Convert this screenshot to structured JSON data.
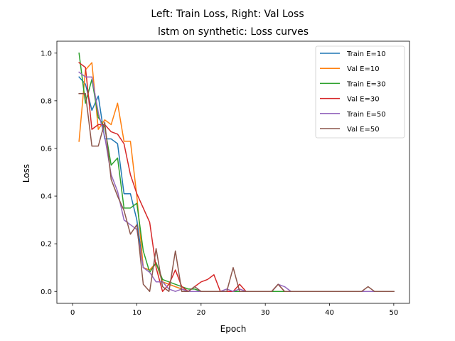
{
  "chart_data": {
    "type": "line",
    "title": "Left: Train Loss, Right: Val Loss",
    "subtitle": "lstm on synthetic: Loss curves",
    "xlabel": "Epoch",
    "ylabel": "Loss",
    "xlim": [
      -2.45,
      52.45
    ],
    "ylim": [
      -0.05,
      1.05
    ],
    "xticks": [
      0,
      10,
      20,
      30,
      40,
      50
    ],
    "yticks": [
      0.0,
      0.2,
      0.4,
      0.6,
      0.8,
      1.0
    ],
    "xtick_labels": [
      "0",
      "10",
      "20",
      "30",
      "40",
      "50"
    ],
    "ytick_labels": [
      "0.0",
      "0.2",
      "0.4",
      "0.6",
      "0.8",
      "1.0"
    ],
    "grid": false,
    "legend_position": "top-right",
    "x": [
      1,
      2,
      3,
      4,
      5,
      6,
      7,
      8,
      9,
      10,
      11,
      12,
      13,
      14,
      15,
      16,
      17,
      18,
      19,
      20,
      21,
      22,
      23,
      24,
      25,
      26,
      27,
      28,
      29,
      30,
      31,
      32,
      33,
      34,
      35,
      36,
      37,
      38,
      39,
      40,
      41,
      42,
      43,
      44,
      45,
      46,
      47,
      48,
      49,
      50
    ],
    "series": [
      {
        "name": "Train E=10",
        "color": "#1f77b4",
        "values": [
          0.9,
          0.87,
          0.76,
          0.82,
          0.64,
          0.64,
          0.62,
          0.41,
          0.41,
          0.3,
          0.1,
          0.09,
          0.12,
          0.04,
          0.03,
          0.02,
          0.01,
          0,
          0,
          0,
          0,
          0,
          0,
          0,
          0,
          0,
          0,
          0,
          0,
          0,
          0,
          0,
          0,
          0,
          0,
          0,
          0,
          0,
          0,
          0,
          0,
          0,
          0,
          0,
          0,
          0,
          0,
          0,
          0,
          0
        ]
      },
      {
        "name": "Val E=10",
        "color": "#ff7f0e",
        "values": [
          0.63,
          0.93,
          0.96,
          0.68,
          0.72,
          0.7,
          0.79,
          0.63,
          0.63,
          0.4,
          0.1,
          0.09,
          0.12,
          0.04,
          0.03,
          0.02,
          0.01,
          0,
          0,
          0,
          0,
          0,
          0,
          0,
          0,
          0,
          0,
          0,
          0,
          0,
          0,
          0,
          0,
          0,
          0,
          0,
          0,
          0,
          0,
          0,
          0,
          0,
          0,
          0,
          0,
          0,
          0,
          0,
          0,
          0
        ]
      },
      {
        "name": "Train E=30",
        "color": "#2ca02c",
        "values": [
          1.0,
          0.79,
          0.89,
          0.73,
          0.69,
          0.53,
          0.56,
          0.35,
          0.35,
          0.37,
          0.17,
          0.08,
          0.12,
          0.05,
          0.04,
          0.03,
          0.02,
          0.01,
          0.01,
          0,
          0,
          0,
          0,
          0,
          0,
          0,
          0,
          0,
          0,
          0,
          0,
          0,
          0,
          0,
          0,
          0,
          0,
          0,
          0,
          0,
          0,
          0,
          0,
          0,
          0,
          0,
          0,
          0,
          0,
          0
        ]
      },
      {
        "name": "Val E=30",
        "color": "#d62728",
        "values": [
          0.96,
          0.94,
          0.68,
          0.7,
          0.7,
          0.67,
          0.66,
          0.62,
          0.49,
          0.41,
          0.35,
          0.29,
          0.1,
          0.0,
          0.03,
          0.09,
          0.02,
          0.0,
          0.02,
          0.04,
          0.05,
          0.07,
          0.0,
          0.0,
          0.0,
          0.03,
          0.0,
          0.0,
          0.0,
          0.0,
          0.0,
          0.03,
          0.0,
          0,
          0,
          0,
          0,
          0,
          0,
          0,
          0,
          0,
          0,
          0,
          0,
          0,
          0,
          0,
          0,
          0
        ]
      },
      {
        "name": "Train E=50",
        "color": "#9467bd",
        "values": [
          0.92,
          0.9,
          0.9,
          0.75,
          0.65,
          0.49,
          0.42,
          0.3,
          0.28,
          0.26,
          0.1,
          0.08,
          0.04,
          0.04,
          0.01,
          0.0,
          0.01,
          0.0,
          0.0,
          0.0,
          0.0,
          0.0,
          0.0,
          0.01,
          0.0,
          0.01,
          0.0,
          0.0,
          0.0,
          0.0,
          0.0,
          0.03,
          0.02,
          0.0,
          0,
          0,
          0,
          0,
          0,
          0,
          0,
          0,
          0,
          0,
          0,
          0,
          0,
          0,
          0,
          0
        ]
      },
      {
        "name": "Val E=50",
        "color": "#8c564b",
        "values": [
          0.83,
          0.83,
          0.61,
          0.61,
          0.71,
          0.47,
          0.4,
          0.34,
          0.24,
          0.28,
          0.03,
          0.0,
          0.18,
          0.02,
          0.0,
          0.17,
          0.0,
          0.0,
          0.02,
          0.0,
          0.0,
          0.0,
          0.0,
          0.0,
          0.1,
          0.0,
          0.0,
          0.0,
          0.0,
          0.0,
          0.0,
          0.03,
          0.0,
          0,
          0,
          0,
          0,
          0,
          0,
          0,
          0,
          0,
          0,
          0,
          0,
          0.02,
          0,
          0,
          0,
          0
        ]
      }
    ]
  }
}
